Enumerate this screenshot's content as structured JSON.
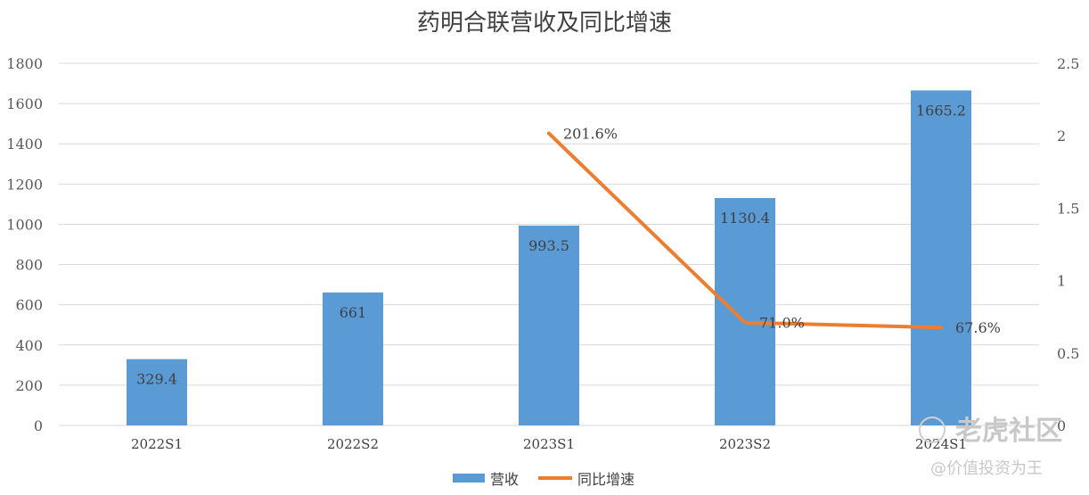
{
  "chart_data": {
    "type": "bar",
    "title": "药明合联营收及同比增速",
    "categories": [
      "2022S1",
      "2022S2",
      "2023S1",
      "2023S2",
      "2024S1"
    ],
    "series": [
      {
        "name": "营收",
        "type": "bar",
        "axis": "left",
        "values": [
          329.4,
          661,
          993.5,
          1130.4,
          1665.2
        ],
        "labels": [
          "329.4",
          "661",
          "993.5",
          "1130.4",
          "1665.2"
        ],
        "color": "#5b9bd5"
      },
      {
        "name": "同比增速",
        "type": "line",
        "axis": "right",
        "values": [
          null,
          null,
          2.016,
          0.71,
          0.676
        ],
        "labels": [
          "",
          "",
          "201.6%",
          "71.0%",
          "67.6%"
        ],
        "color": "#ed7d31"
      }
    ],
    "y_left": {
      "ylim": [
        0,
        1800
      ],
      "ticks": [
        "0",
        "200",
        "400",
        "600",
        "800",
        "1000",
        "1200",
        "1400",
        "1600",
        "1800"
      ]
    },
    "y_right": {
      "ylim": [
        0,
        2.5
      ],
      "ticks": [
        "0",
        "0.5",
        "1",
        "1.5",
        "2",
        "2.5"
      ]
    },
    "grid": true,
    "legend": "bottom"
  },
  "watermark": {
    "brand": "老虎社区",
    "handle": "@价值投资为王"
  }
}
